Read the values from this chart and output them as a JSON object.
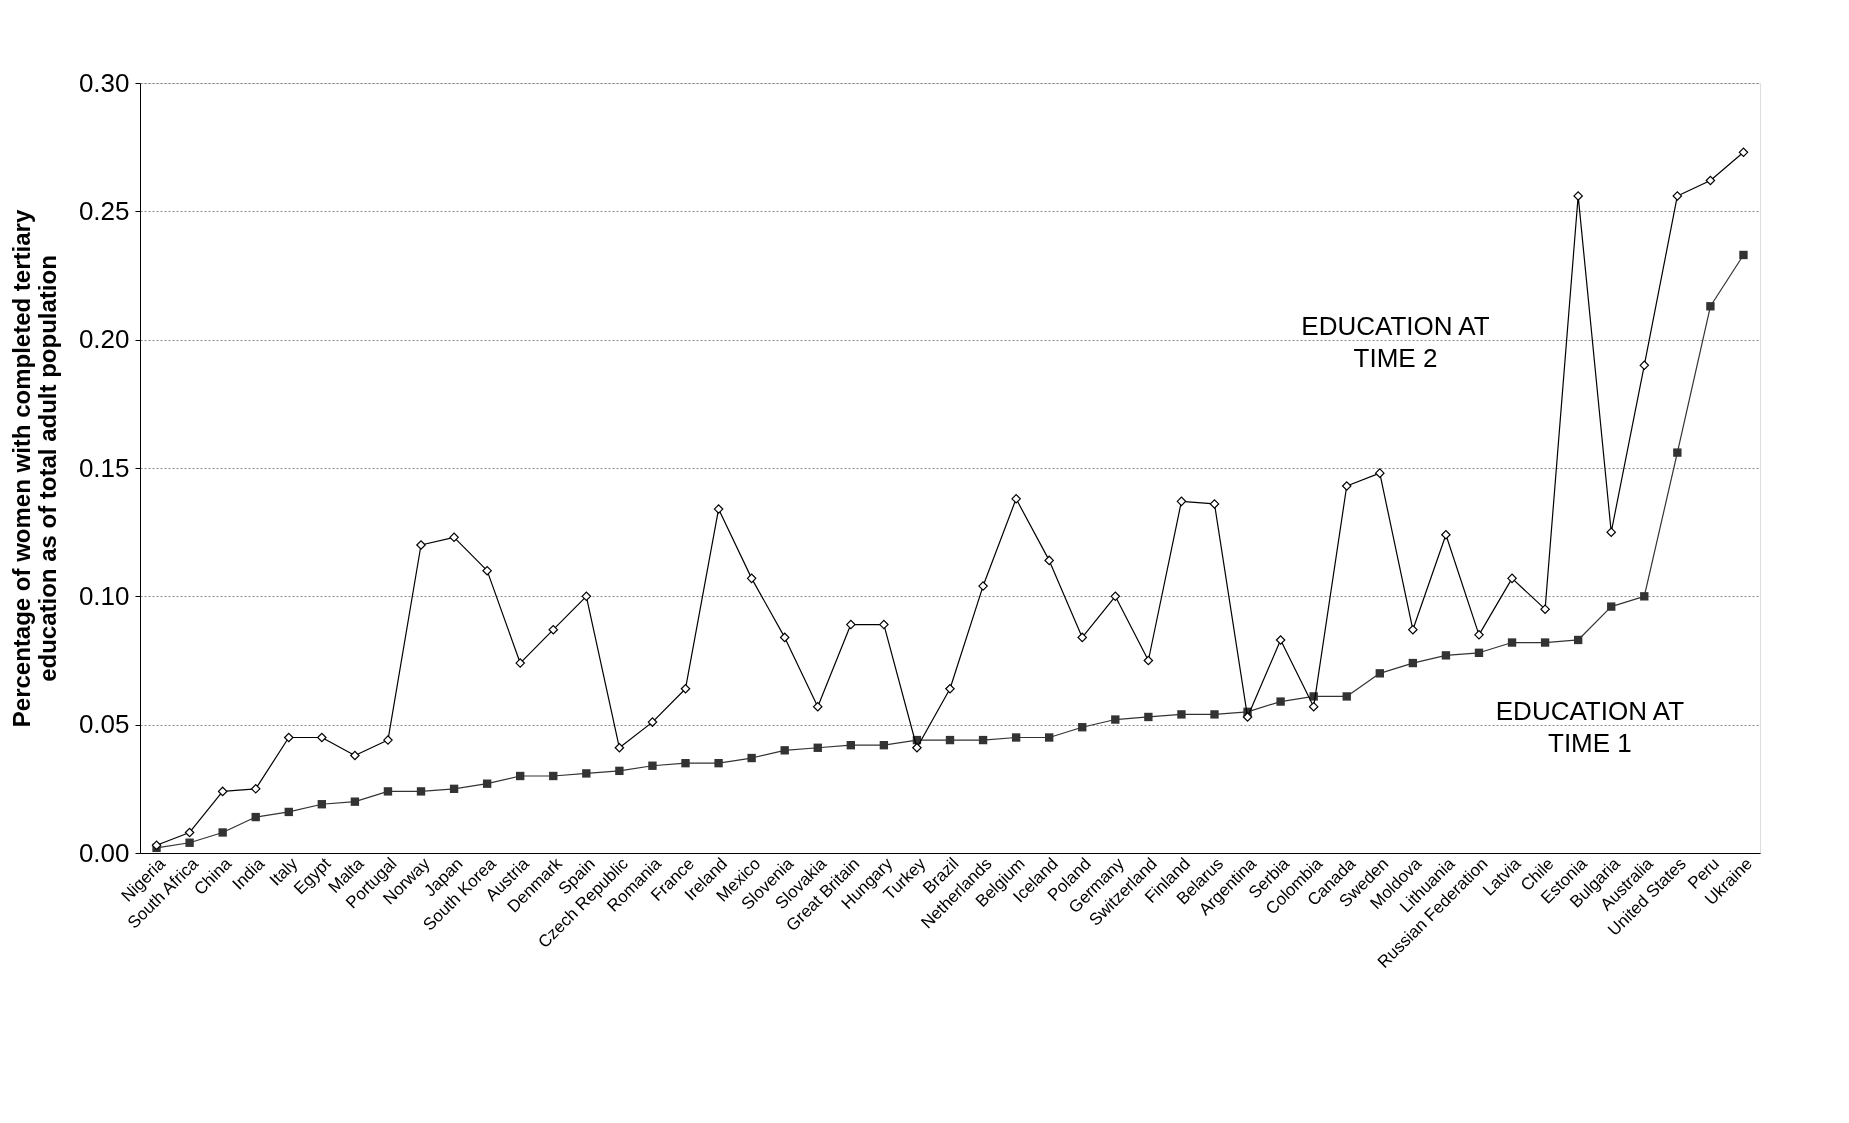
{
  "chart_data": {
    "type": "line",
    "ylabel": "Percentage of women with completed tertiary education as of total adult population",
    "categories": [
      "Nigeria",
      "South Africa",
      "China",
      "India",
      "Italy",
      "Egypt",
      "Malta",
      "Portugal",
      "Norway",
      "Japan",
      "South Korea",
      "Austria",
      "Denmark",
      "Spain",
      "Czech Republic",
      "Romania",
      "France",
      "Ireland",
      "Mexico",
      "Slovenia",
      "Slovakia",
      "Great Britain",
      "Hungary",
      "Turkey",
      "Brazil",
      "Netherlands",
      "Belgium",
      "Iceland",
      "Poland",
      "Germany",
      "Switzerland",
      "Finland",
      "Belarus",
      "Argentina",
      "Serbia",
      "Colombia",
      "Canada",
      "Sweden",
      "Moldova",
      "Lithuania",
      "Russian Federation",
      "Latvia",
      "Chile",
      "Estonia",
      "Bulgaria",
      "Australia",
      "United States",
      "Peru",
      "Ukraine"
    ],
    "series": [
      {
        "name": "EDUCATION AT TIME 2",
        "color": "#000000",
        "marker": "diamond",
        "values": [
          0.003,
          0.008,
          0.024,
          0.025,
          0.045,
          0.045,
          0.038,
          0.044,
          0.12,
          0.123,
          0.11,
          0.074,
          0.087,
          0.1,
          0.041,
          0.051,
          0.064,
          0.134,
          0.107,
          0.084,
          0.057,
          0.089,
          0.089,
          0.041,
          0.064,
          0.104,
          0.138,
          0.114,
          0.084,
          0.1,
          0.075,
          0.137,
          0.136,
          0.053,
          0.083,
          0.057,
          0.143,
          0.148,
          0.087,
          0.124,
          0.085,
          0.107,
          0.095,
          0.256,
          0.125,
          0.19,
          0.256,
          0.262,
          0.273
        ]
      },
      {
        "name": "EDUCATION AT TIME 1",
        "color": "#333333",
        "marker": "square",
        "values": [
          0.002,
          0.004,
          0.008,
          0.014,
          0.016,
          0.019,
          0.02,
          0.024,
          0.024,
          0.025,
          0.027,
          0.03,
          0.03,
          0.031,
          0.032,
          0.034,
          0.035,
          0.035,
          0.037,
          0.04,
          0.041,
          0.042,
          0.042,
          0.044,
          0.044,
          0.044,
          0.045,
          0.045,
          0.049,
          0.052,
          0.053,
          0.054,
          0.054,
          0.055,
          0.059,
          0.061,
          0.061,
          0.07,
          0.074,
          0.077,
          0.078,
          0.082,
          0.082,
          0.083,
          0.096,
          0.1,
          0.156,
          0.213,
          0.233
        ]
      }
    ],
    "ylim": [
      0,
      0.3
    ],
    "yticks": [
      {
        "value": 0,
        "label": "0.00"
      },
      {
        "value": 0.05,
        "label": "0.05"
      },
      {
        "value": 0.1,
        "label": "0.10"
      },
      {
        "value": 0.15,
        "label": "0.15"
      },
      {
        "value": 0.2,
        "label": "0.20"
      },
      {
        "value": 0.25,
        "label": "0.25"
      },
      {
        "value": 0.3,
        "label": "0.30"
      }
    ],
    "grid": "y",
    "line_style": "solid"
  }
}
